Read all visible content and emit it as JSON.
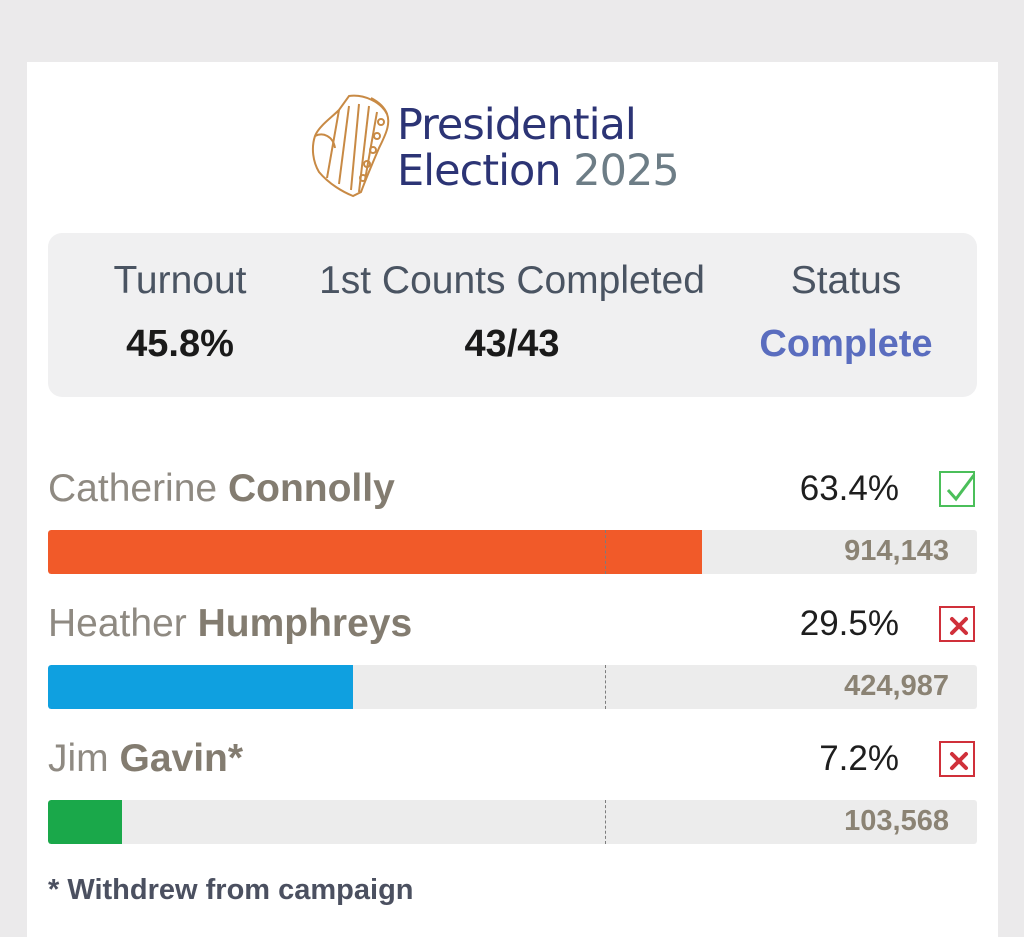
{
  "header": {
    "title_line1": "Presidential",
    "title_line2": "Election",
    "title_year": "2025",
    "logo_icon": "harp-emblem-icon"
  },
  "stats": {
    "turnout": {
      "label": "Turnout",
      "value": "45.8%"
    },
    "counts": {
      "label": "1st Counts Completed",
      "value": "43/43"
    },
    "status": {
      "label": "Status",
      "value": "Complete"
    }
  },
  "candidates": [
    {
      "first_name": "Catherine",
      "last_name": "Connolly",
      "percent": "63.4%",
      "share": 0.634,
      "votes": "914,143",
      "result": "elected",
      "result_icon": "checkmark-icon",
      "color": "#f15a29"
    },
    {
      "first_name": "Heather",
      "last_name": "Humphreys",
      "percent": "29.5%",
      "share": 0.295,
      "votes": "424,987",
      "result": "eliminated",
      "result_icon": "cross-icon",
      "color": "#0fa0e0"
    },
    {
      "first_name": "Jim",
      "last_name": "Gavin*",
      "percent": "7.2%",
      "share": 0.072,
      "votes": "103,568",
      "result": "eliminated",
      "result_icon": "cross-icon",
      "color": "#1aa84a"
    }
  ],
  "footnote": "* Withdrew from campaign",
  "colors": {
    "title": "#2c3475",
    "year": "#6d7d86",
    "status_complete": "#5a6dbf",
    "elected": "#4bbf5a",
    "eliminated": "#d0303a"
  }
}
